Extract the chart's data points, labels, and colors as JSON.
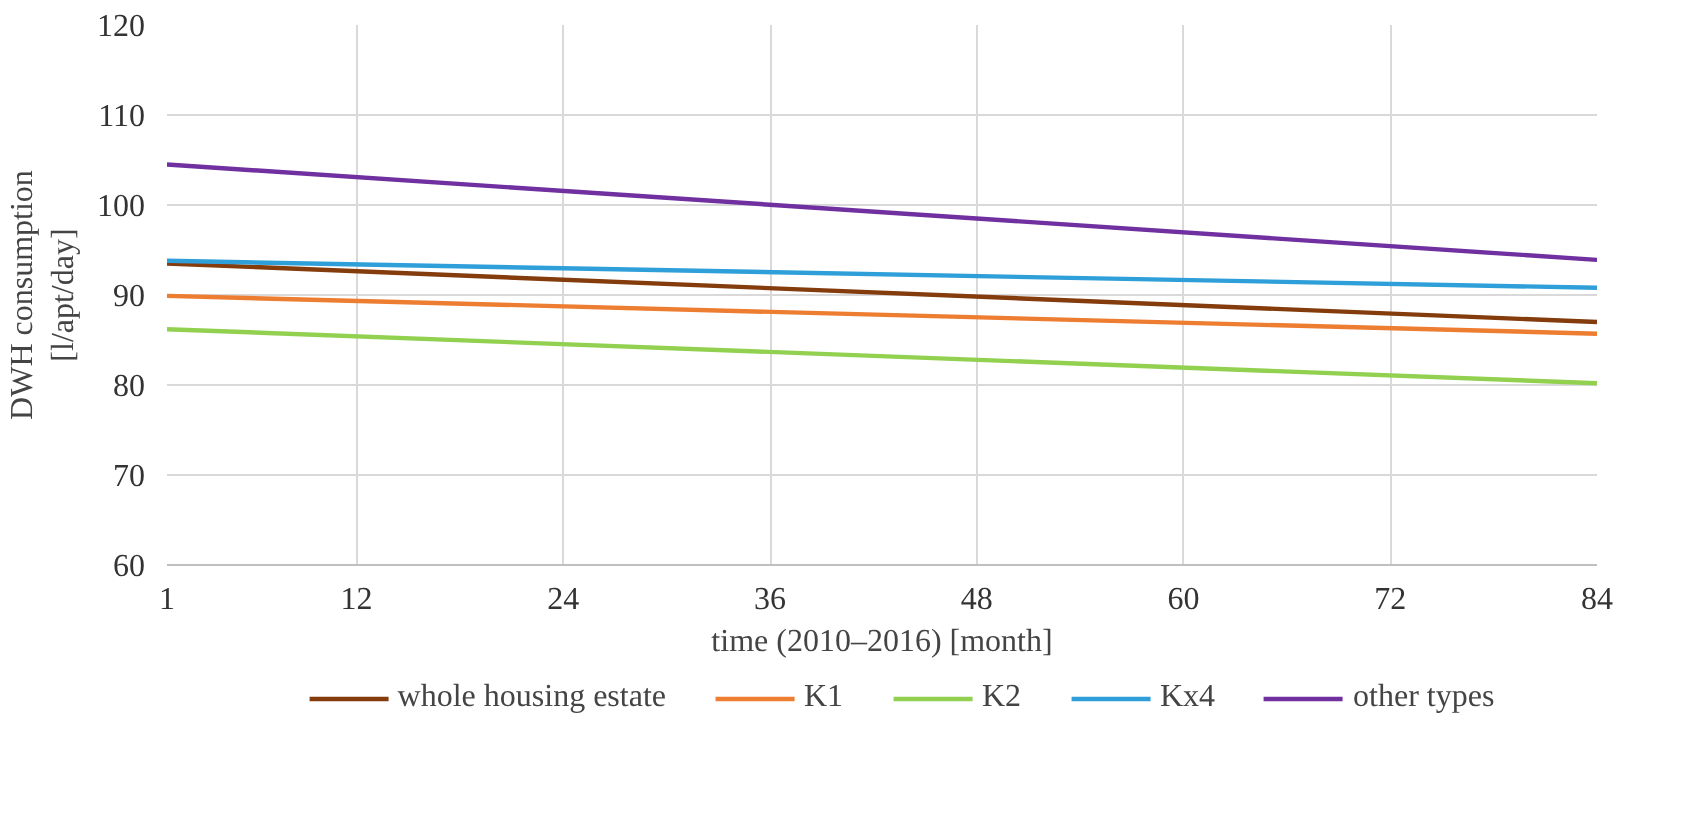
{
  "chart_data": {
    "type": "line",
    "xlabel": "time (2010–2016) [month]",
    "ylabel": "DWH consumption\n[l/apt/day]",
    "x": [
      1,
      84
    ],
    "series": [
      {
        "name": "whole housing estate",
        "color": "#843c0c",
        "values": [
          93.5,
          87.0
        ]
      },
      {
        "name": "K1",
        "color": "#ed7d31",
        "values": [
          89.9,
          85.7
        ]
      },
      {
        "name": "K2",
        "color": "#92d050",
        "values": [
          86.2,
          80.2
        ]
      },
      {
        "name": "Kx4",
        "color": "#2e9fd8",
        "values": [
          93.8,
          90.8
        ]
      },
      {
        "name": "other types",
        "color": "#7030a0",
        "values": [
          104.5,
          93.9
        ]
      }
    ],
    "xlim": [
      1,
      84
    ],
    "xticks": [
      1,
      12,
      24,
      36,
      48,
      60,
      72,
      84
    ],
    "ylim": [
      60,
      120
    ],
    "yticks": [
      60,
      70,
      80,
      90,
      100,
      110,
      120
    ],
    "grid": true,
    "legend": "bottom",
    "marker": "none",
    "line_style": "solid"
  }
}
